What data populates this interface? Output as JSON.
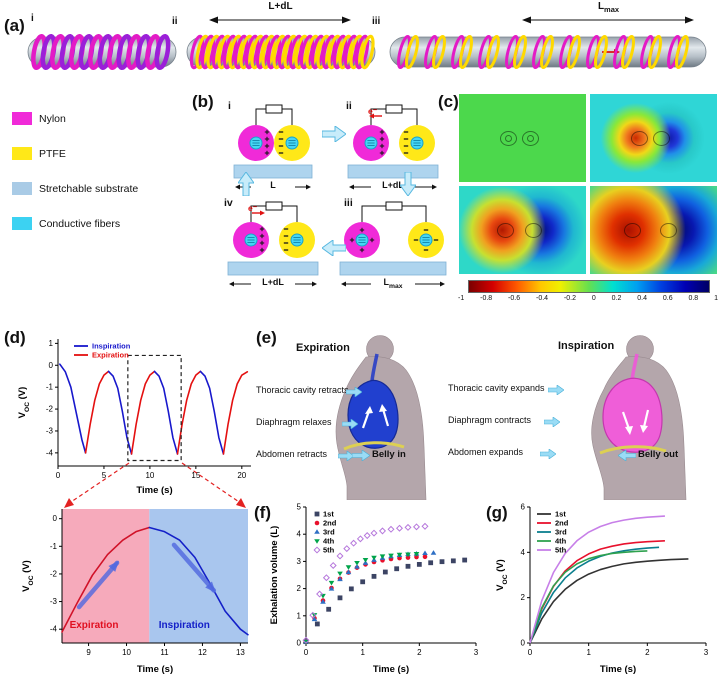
{
  "panel_a": {
    "label": "(a)",
    "states": [
      "i",
      "ii",
      "iii"
    ],
    "len_ii": "L+dL",
    "len_iii": "L_{max}"
  },
  "materials_legend": [
    {
      "label": "Nylon",
      "color": "#f02ad8"
    },
    {
      "label": "PTFE",
      "color": "#ffe818"
    },
    {
      "label": "Stretchable substrate",
      "color": "#a9cbe6"
    },
    {
      "label": "Conductive fibers",
      "color": "#3cd2f2"
    }
  ],
  "panel_b": {
    "label": "(b)",
    "state_ids": [
      "i",
      "ii",
      "iii",
      "iv"
    ],
    "lengths": {
      "i": "L",
      "ii": "L+dL",
      "iii": "L_{max}",
      "iv": "L+dL"
    },
    "electron": "e⁻"
  },
  "panel_c": {
    "label": "(c)",
    "colorbar_ticks": [
      "-1",
      "-0.8",
      "-0.6",
      "-0.4",
      "-0.2",
      "0",
      "0.2",
      "0.4",
      "0.6",
      "0.8",
      "1"
    ]
  },
  "panel_d": {
    "label": "(d)"
  },
  "panel_e": {
    "label": "(e)",
    "left": {
      "title": "Expiration",
      "labels": [
        "Thoracic cavity retracts",
        "Diaphragm relaxes",
        "Abdomen retracts"
      ],
      "belly": "Belly in"
    },
    "right": {
      "title": "Inspiration",
      "labels": [
        "Thoracic cavity expands",
        "Diaphragm contracts",
        "Abdomen expands"
      ],
      "belly": "Belly out"
    }
  },
  "panel_f": {
    "label": "(f)"
  },
  "panel_g": {
    "label": "(g)"
  },
  "chart_data": [
    {
      "id": "d-main",
      "type": "line",
      "xlabel": "Time (s)",
      "ylabel": "V_{OC} (V)",
      "xlim": [
        0,
        21
      ],
      "ylim": [
        -4.6,
        1.2
      ],
      "xticks": [
        0,
        5,
        10,
        15,
        20
      ],
      "yticks": [
        -4,
        -3,
        -2,
        -1,
        0,
        1
      ],
      "legend": [
        {
          "name": "Inspiration",
          "color": "#1818cc"
        },
        {
          "name": "Expiration",
          "color": "#e41010"
        }
      ],
      "dashed_box": [
        7.6,
        -4.35,
        13.4,
        0.45
      ],
      "segments": [
        {
          "color": "#1818cc",
          "points": [
            [
              0.2,
              0.05
            ],
            [
              0.8,
              -0.3
            ],
            [
              1.4,
              -1.0
            ],
            [
              2.0,
              -2.2
            ],
            [
              2.6,
              -3.4
            ],
            [
              3.0,
              -4.0
            ]
          ]
        },
        {
          "color": "#e41010",
          "points": [
            [
              3.0,
              -4.0
            ],
            [
              3.5,
              -2.7
            ],
            [
              4.0,
              -1.6
            ],
            [
              4.5,
              -0.85
            ],
            [
              5.0,
              -0.45
            ],
            [
              5.5,
              -0.28
            ]
          ]
        },
        {
          "color": "#1818cc",
          "points": [
            [
              5.5,
              -0.28
            ],
            [
              6.0,
              -0.5
            ],
            [
              6.5,
              -1.05
            ],
            [
              7.0,
              -2.1
            ],
            [
              7.5,
              -3.3
            ],
            [
              8.0,
              -4.05
            ]
          ]
        },
        {
          "color": "#e41010",
          "points": [
            [
              8.0,
              -4.05
            ],
            [
              8.5,
              -2.7
            ],
            [
              9.0,
              -1.6
            ],
            [
              9.5,
              -0.85
            ],
            [
              10.0,
              -0.45
            ],
            [
              10.5,
              -0.28
            ]
          ]
        },
        {
          "color": "#1818cc",
          "points": [
            [
              10.5,
              -0.28
            ],
            [
              11.0,
              -0.5
            ],
            [
              11.5,
              -1.05
            ],
            [
              12.0,
              -2.1
            ],
            [
              12.5,
              -3.3
            ],
            [
              13.0,
              -4.05
            ]
          ]
        },
        {
          "color": "#e41010",
          "points": [
            [
              13.0,
              -4.05
            ],
            [
              13.5,
              -2.7
            ],
            [
              14.0,
              -1.6
            ],
            [
              14.5,
              -0.85
            ],
            [
              15.0,
              -0.45
            ],
            [
              15.5,
              -0.28
            ]
          ]
        },
        {
          "color": "#1818cc",
          "points": [
            [
              15.5,
              -0.28
            ],
            [
              16.0,
              -0.5
            ],
            [
              16.5,
              -1.05
            ],
            [
              17.0,
              -2.1
            ],
            [
              17.5,
              -3.3
            ],
            [
              18.0,
              -4.05
            ]
          ]
        },
        {
          "color": "#e41010",
          "points": [
            [
              18.0,
              -4.05
            ],
            [
              18.5,
              -2.7
            ],
            [
              19.0,
              -1.6
            ],
            [
              19.5,
              -0.85
            ],
            [
              20.0,
              -0.45
            ],
            [
              20.6,
              -0.3
            ]
          ]
        }
      ]
    },
    {
      "id": "d-zoom",
      "type": "line",
      "xlabel": "Time (s)",
      "ylabel": "V_{OC} (V)",
      "xlim": [
        8.3,
        13.2
      ],
      "ylim": [
        -4.5,
        0.35
      ],
      "xticks": [
        9,
        10,
        11,
        12,
        13
      ],
      "yticks": [
        -4,
        -3,
        -2,
        -1,
        0
      ],
      "regions": [
        {
          "x0": 8.3,
          "x1": 10.6,
          "color": "#f6aabb"
        },
        {
          "x0": 10.6,
          "x1": 13.2,
          "color": "#a9c6ee"
        }
      ],
      "labels": [
        {
          "text": "Expiration",
          "color": "#e01020",
          "x": 8.5,
          "y": -3.95
        },
        {
          "text": "Inspiration",
          "color": "#1420c8",
          "x": 10.85,
          "y": -3.95
        }
      ],
      "arrows": [
        {
          "x1": 8.75,
          "y1": -3.2,
          "x2": 9.75,
          "y2": -1.6,
          "color": "#5068e0"
        },
        {
          "x1": 11.25,
          "y1": -0.95,
          "x2": 12.3,
          "y2": -2.6,
          "color": "#5068e0"
        }
      ],
      "segments": [
        {
          "color": "#d01228",
          "points": [
            [
              8.3,
              -4.1
            ],
            [
              8.7,
              -3.05
            ],
            [
              9.1,
              -2.05
            ],
            [
              9.5,
              -1.3
            ],
            [
              9.9,
              -0.78
            ],
            [
              10.25,
              -0.47
            ],
            [
              10.6,
              -0.32
            ]
          ]
        },
        {
          "color": "#1420c8",
          "points": [
            [
              10.6,
              -0.32
            ],
            [
              11.0,
              -0.47
            ],
            [
              11.4,
              -0.78
            ],
            [
              11.8,
              -1.4
            ],
            [
              12.2,
              -2.35
            ],
            [
              12.6,
              -3.35
            ],
            [
              13.0,
              -4.0
            ],
            [
              13.2,
              -4.2
            ]
          ]
        }
      ]
    },
    {
      "id": "f",
      "type": "scatter",
      "xlabel": "Time (s)",
      "ylabel": "Exhalation volume (L)",
      "xlim": [
        0,
        3
      ],
      "ylim": [
        0,
        5
      ],
      "xticks": [
        0,
        1,
        2,
        3
      ],
      "yticks": [
        0,
        1,
        2,
        3,
        4,
        5
      ],
      "legend_from_series": true,
      "series": [
        {
          "name": "1st",
          "color": "#3c4464",
          "marker": "square",
          "points": [
            [
              0,
              0.05
            ],
            [
              0.2,
              0.7
            ],
            [
              0.4,
              1.24
            ],
            [
              0.6,
              1.66
            ],
            [
              0.8,
              1.99
            ],
            [
              1.0,
              2.25
            ],
            [
              1.2,
              2.45
            ],
            [
              1.4,
              2.61
            ],
            [
              1.6,
              2.73
            ],
            [
              1.8,
              2.82
            ],
            [
              2.0,
              2.89
            ],
            [
              2.2,
              2.95
            ],
            [
              2.4,
              2.99
            ],
            [
              2.6,
              3.02
            ],
            [
              2.8,
              3.05
            ]
          ]
        },
        {
          "name": "2nd",
          "color": "#e8112d",
          "marker": "circle",
          "points": [
            [
              0,
              0.05
            ],
            [
              0.15,
              0.91
            ],
            [
              0.3,
              1.56
            ],
            [
              0.45,
              2.02
            ],
            [
              0.6,
              2.36
            ],
            [
              0.75,
              2.59
            ],
            [
              0.9,
              2.77
            ],
            [
              1.05,
              2.89
            ],
            [
              1.2,
              2.98
            ],
            [
              1.35,
              3.04
            ],
            [
              1.5,
              3.09
            ],
            [
              1.65,
              3.12
            ],
            [
              1.8,
              3.14
            ],
            [
              1.95,
              3.16
            ],
            [
              2.1,
              3.17
            ]
          ]
        },
        {
          "name": "3rd",
          "color": "#2e6fc4",
          "marker": "triangle-up",
          "points": [
            [
              0,
              0.05
            ],
            [
              0.15,
              0.87
            ],
            [
              0.3,
              1.51
            ],
            [
              0.45,
              1.99
            ],
            [
              0.6,
              2.34
            ],
            [
              0.75,
              2.6
            ],
            [
              0.9,
              2.8
            ],
            [
              1.05,
              2.94
            ],
            [
              1.2,
              3.05
            ],
            [
              1.35,
              3.12
            ],
            [
              1.5,
              3.18
            ],
            [
              1.65,
              3.23
            ],
            [
              1.8,
              3.26
            ],
            [
              1.95,
              3.28
            ],
            [
              2.1,
              3.3
            ],
            [
              2.25,
              3.31
            ]
          ]
        },
        {
          "name": "4th",
          "color": "#00a44a",
          "marker": "triangle-down",
          "points": [
            [
              0,
              0.05
            ],
            [
              0.15,
              1.03
            ],
            [
              0.3,
              1.74
            ],
            [
              0.45,
              2.22
            ],
            [
              0.6,
              2.56
            ],
            [
              0.75,
              2.79
            ],
            [
              0.9,
              2.95
            ],
            [
              1.05,
              3.06
            ],
            [
              1.2,
              3.14
            ],
            [
              1.35,
              3.19
            ],
            [
              1.5,
              3.22
            ],
            [
              1.65,
              3.25
            ],
            [
              1.8,
              3.26
            ],
            [
              1.95,
              3.28
            ]
          ]
        },
        {
          "name": "5th",
          "color": "#b678dc",
          "marker": "diamond-open",
          "points": [
            [
              0,
              0.1
            ],
            [
              0.12,
              1.02
            ],
            [
              0.24,
              1.8
            ],
            [
              0.36,
              2.4
            ],
            [
              0.48,
              2.85
            ],
            [
              0.6,
              3.2
            ],
            [
              0.72,
              3.47
            ],
            [
              0.84,
              3.67
            ],
            [
              0.96,
              3.83
            ],
            [
              1.08,
              3.95
            ],
            [
              1.2,
              4.04
            ],
            [
              1.35,
              4.12
            ],
            [
              1.5,
              4.18
            ],
            [
              1.65,
              4.22
            ],
            [
              1.8,
              4.25
            ],
            [
              1.95,
              4.27
            ],
            [
              2.1,
              4.29
            ]
          ]
        }
      ]
    },
    {
      "id": "g",
      "type": "line",
      "xlabel": "Time (s)",
      "ylabel": "V_{OC} (V)",
      "xlim": [
        0,
        3
      ],
      "ylim": [
        0,
        6
      ],
      "xticks": [
        0,
        1,
        2,
        3
      ],
      "yticks": [
        0,
        2,
        4,
        6
      ],
      "legend_from_series": true,
      "series": [
        {
          "name": "1st",
          "color": "#333333",
          "points": [
            [
              0,
              0
            ],
            [
              0.2,
              1.06
            ],
            [
              0.4,
              1.83
            ],
            [
              0.6,
              2.37
            ],
            [
              0.8,
              2.76
            ],
            [
              1.0,
              3.04
            ],
            [
              1.2,
              3.24
            ],
            [
              1.4,
              3.38
            ],
            [
              1.6,
              3.49
            ],
            [
              1.8,
              3.56
            ],
            [
              2.0,
              3.61
            ],
            [
              2.2,
              3.65
            ],
            [
              2.4,
              3.68
            ],
            [
              2.7,
              3.71
            ]
          ]
        },
        {
          "name": "2nd",
          "color": "#e8112d",
          "points": [
            [
              0,
              0
            ],
            [
              0.2,
              1.5
            ],
            [
              0.4,
              2.5
            ],
            [
              0.6,
              3.18
            ],
            [
              0.8,
              3.63
            ],
            [
              1.0,
              3.93
            ],
            [
              1.2,
              4.14
            ],
            [
              1.4,
              4.27
            ],
            [
              1.6,
              4.37
            ],
            [
              1.8,
              4.43
            ],
            [
              2.0,
              4.47
            ],
            [
              2.3,
              4.51
            ]
          ]
        },
        {
          "name": "3rd",
          "color": "#0b7f8e",
          "points": [
            [
              0,
              0
            ],
            [
              0.2,
              1.32
            ],
            [
              0.4,
              2.23
            ],
            [
              0.6,
              2.87
            ],
            [
              0.8,
              3.31
            ],
            [
              1.0,
              3.61
            ],
            [
              1.2,
              3.82
            ],
            [
              1.4,
              3.97
            ],
            [
              1.6,
              4.07
            ],
            [
              1.8,
              4.14
            ],
            [
              2.0,
              4.19
            ],
            [
              2.2,
              4.22
            ]
          ]
        },
        {
          "name": "4th",
          "color": "#2fa24f",
          "points": [
            [
              0,
              0
            ],
            [
              0.2,
              1.55
            ],
            [
              0.4,
              2.52
            ],
            [
              0.6,
              3.12
            ],
            [
              0.8,
              3.49
            ],
            [
              1.0,
              3.72
            ],
            [
              1.2,
              3.86
            ],
            [
              1.4,
              3.95
            ],
            [
              1.6,
              4.0
            ],
            [
              1.8,
              4.04
            ],
            [
              2.0,
              4.06
            ]
          ]
        },
        {
          "name": "5th",
          "color": "#c77fe8",
          "points": [
            [
              0,
              0
            ],
            [
              0.2,
              1.86
            ],
            [
              0.4,
              3.11
            ],
            [
              0.6,
              3.95
            ],
            [
              0.8,
              4.51
            ],
            [
              1.0,
              4.89
            ],
            [
              1.2,
              5.14
            ],
            [
              1.4,
              5.31
            ],
            [
              1.6,
              5.42
            ],
            [
              1.8,
              5.5
            ],
            [
              2.0,
              5.55
            ],
            [
              2.3,
              5.6
            ]
          ]
        }
      ]
    }
  ]
}
